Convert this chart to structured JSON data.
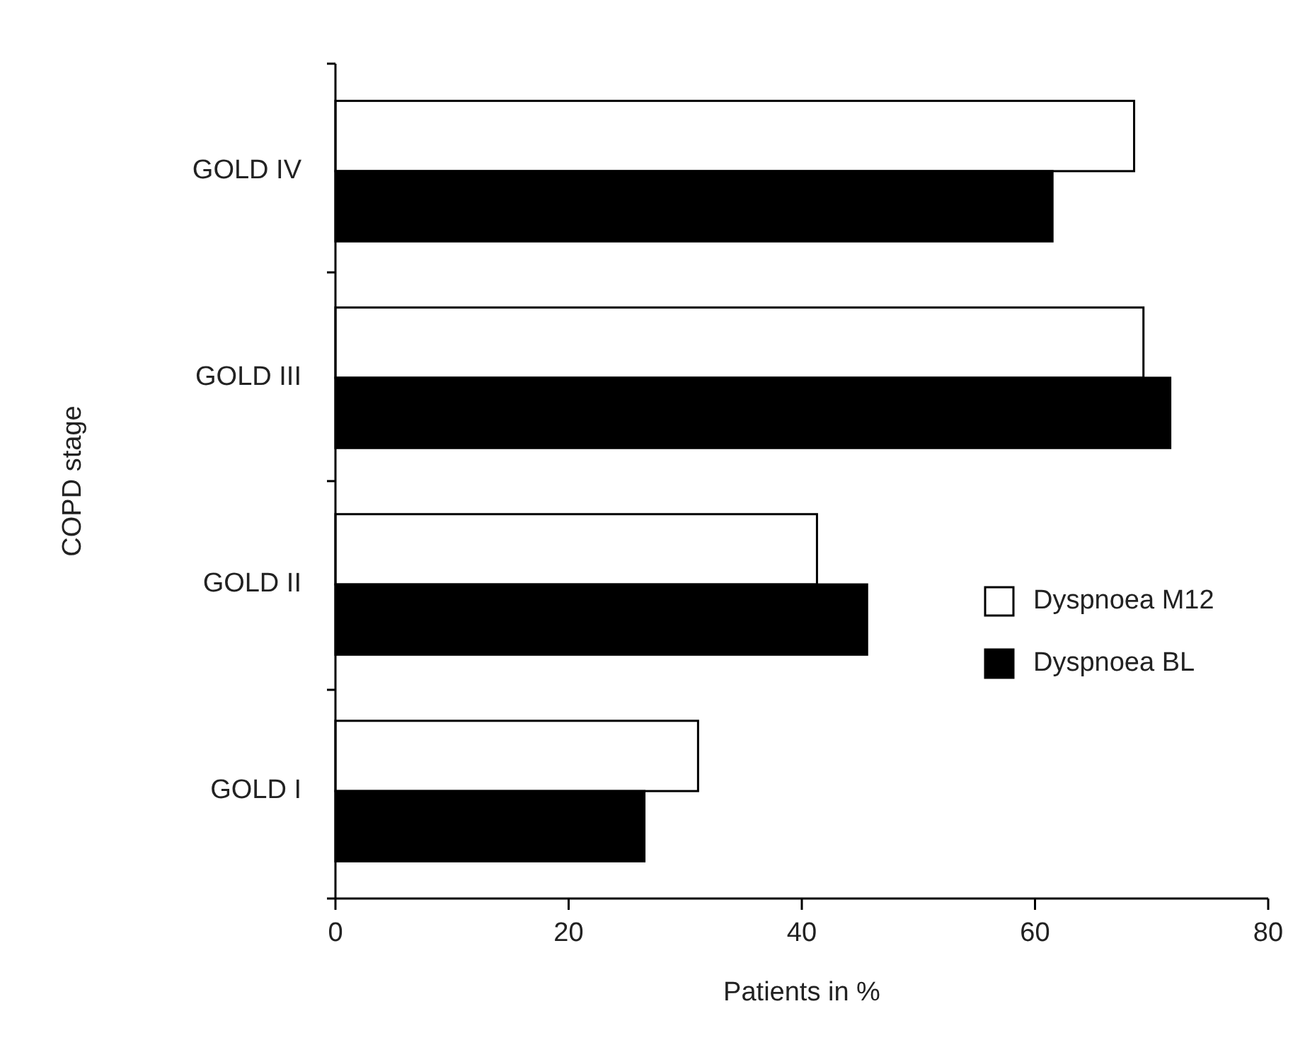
{
  "chart_data": {
    "type": "bar",
    "orientation": "horizontal",
    "xlabel": "Patients in %",
    "ylabel": "COPD stage",
    "categories": [
      "GOLD IV",
      "GOLD III",
      "GOLD II",
      "GOLD I"
    ],
    "series": [
      {
        "name": "Dyspnoea M12",
        "color": "#ffffff",
        "values": [
          68.5,
          69.3,
          41.3,
          31.1
        ]
      },
      {
        "name": "Dyspnoea BL",
        "color": "#000000",
        "values": [
          61.5,
          71.6,
          45.6,
          26.5
        ]
      }
    ],
    "xlim": [
      0,
      80
    ],
    "xticks": [
      0,
      20,
      40,
      60,
      80
    ],
    "legend": "bottom right",
    "grid": false
  }
}
